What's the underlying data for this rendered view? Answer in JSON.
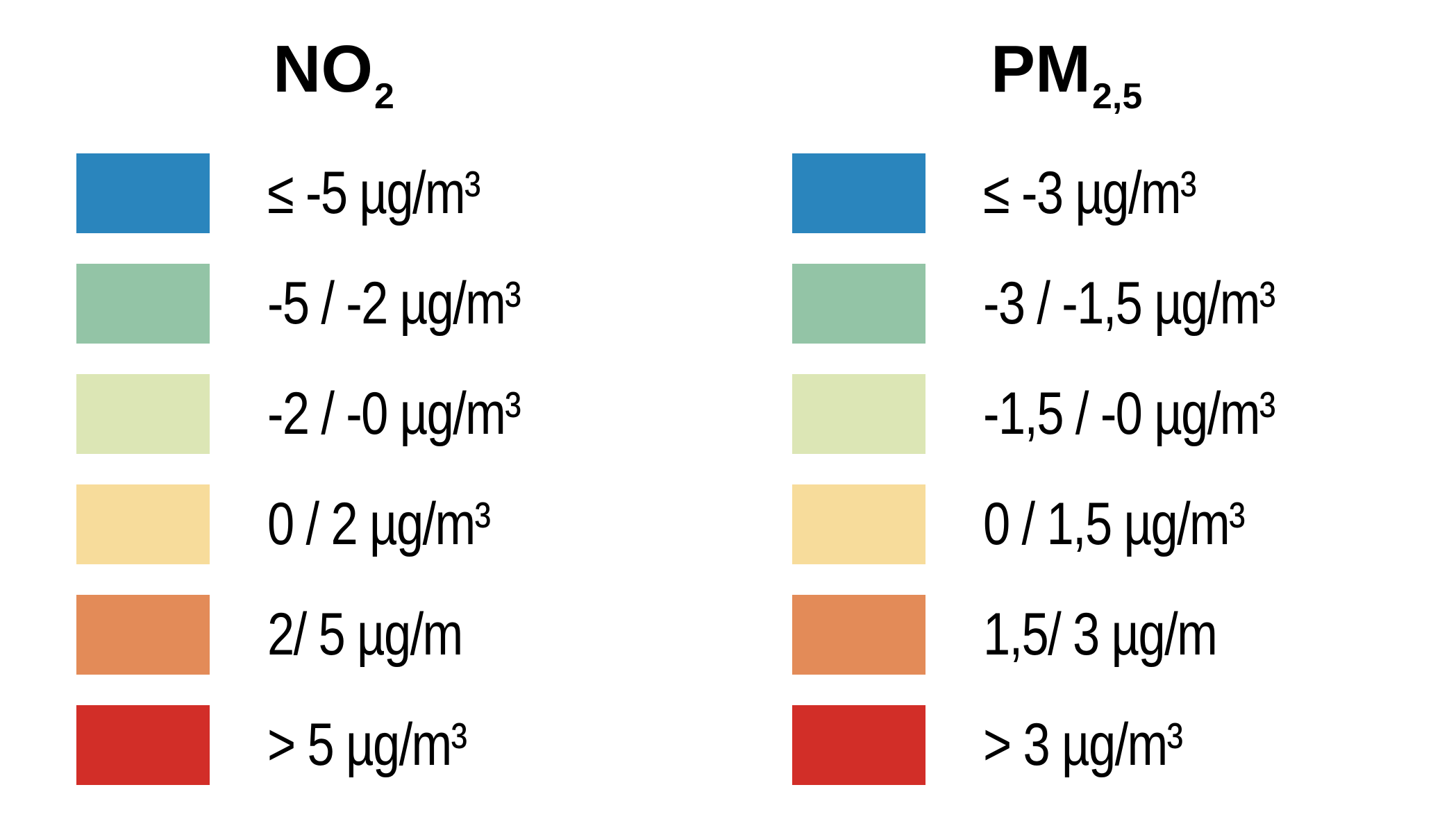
{
  "legends": [
    {
      "title": "NO",
      "title_sub": "2",
      "items": [
        {
          "label": "≤ -5 µg/m³",
          "color": "#2a85bd"
        },
        {
          "label": "-5 / -2 µg/m³",
          "color": "#93c4a6"
        },
        {
          "label": "-2 / -0 µg/m³",
          "color": "#dce6b5"
        },
        {
          "label": "0 / 2 µg/m³",
          "color": "#f7dc9b"
        },
        {
          "label": "2/ 5 µg/m",
          "color": "#e38b58"
        },
        {
          "label": "> 5 µg/m³",
          "color": "#d22e28"
        }
      ]
    },
    {
      "title": "PM",
      "title_sub": "2,5",
      "items": [
        {
          "label": "≤ -3 µg/m³",
          "color": "#2a85bd"
        },
        {
          "label": "-3 / -1,5 µg/m³",
          "color": "#93c4a6"
        },
        {
          "label": "-1,5 / -0 µg/m³",
          "color": "#dce6b5"
        },
        {
          "label": "0 / 1,5 µg/m³",
          "color": "#f7dc9b"
        },
        {
          "label": "1,5/ 3 µg/m",
          "color": "#e38b58"
        },
        {
          "label": "> 3 µg/m³",
          "color": "#d22e28"
        }
      ]
    }
  ]
}
